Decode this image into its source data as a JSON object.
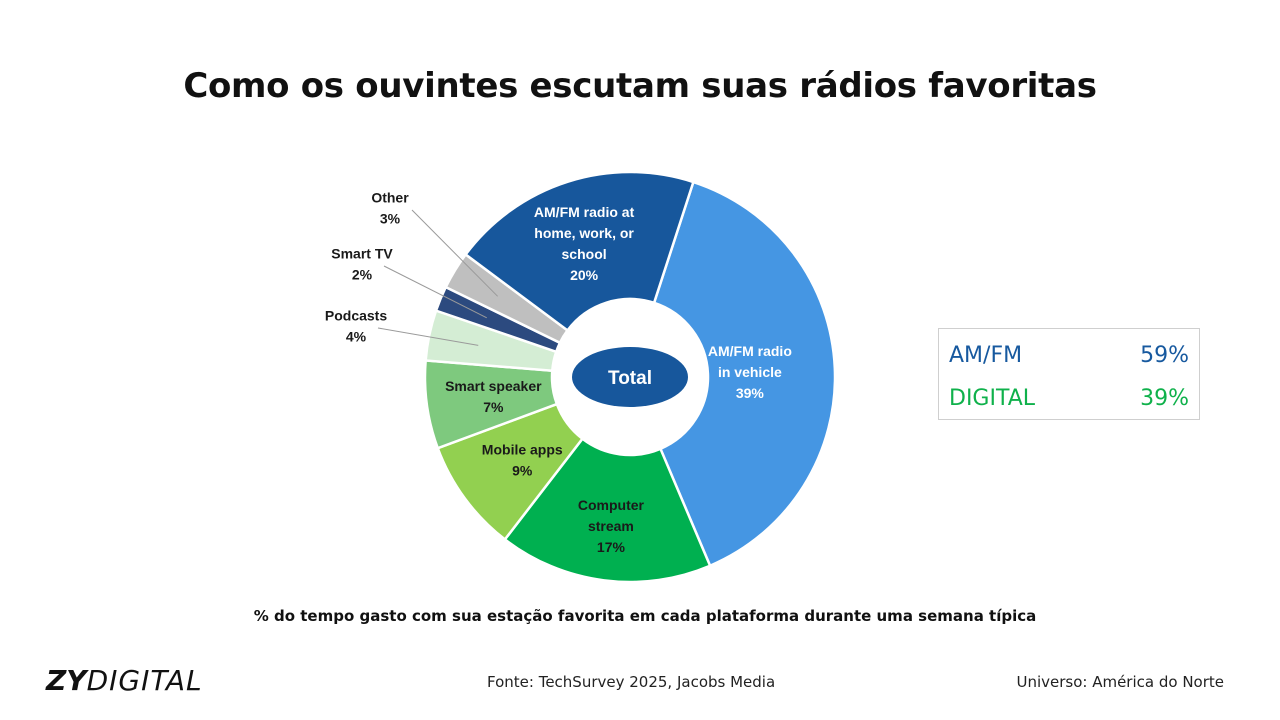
{
  "title": "Como os ouvintes escutam suas rádios favoritas",
  "chart_data": {
    "type": "pie",
    "center_label": "Total",
    "slices": [
      {
        "name": "AM/FM radio in vehicle",
        "label_lines": [
          "AM/FM radio",
          "in vehicle"
        ],
        "value_label": "39%",
        "value": 39,
        "color": "#4596e3",
        "label_color": "#ffffff"
      },
      {
        "name": "Computer stream",
        "label_lines": [
          "Computer",
          "stream"
        ],
        "value_label": "17%",
        "value": 17,
        "color": "#00b050",
        "label_color": "#1a1a1a"
      },
      {
        "name": "Mobile apps",
        "label_lines": [
          "Mobile apps"
        ],
        "value_label": "9%",
        "value": 9,
        "color": "#92d050",
        "label_color": "#1a1a1a"
      },
      {
        "name": "Smart speaker",
        "label_lines": [
          "Smart speaker"
        ],
        "value_label": "7%",
        "value": 7,
        "color": "#7ec97e",
        "label_color": "#1a1a1a"
      },
      {
        "name": "Podcasts",
        "label_lines": [
          "Podcasts"
        ],
        "value_label": "4%",
        "value": 4,
        "color": "#d4edd4",
        "label_color": "#1a1a1a"
      },
      {
        "name": "Smart TV",
        "label_lines": [
          "Smart TV"
        ],
        "value_label": "2%",
        "value": 2,
        "color": "#2c4a7f",
        "label_color": "#1a1a1a"
      },
      {
        "name": "Other",
        "label_lines": [
          "Other"
        ],
        "value_label": "3%",
        "value": 3,
        "color": "#bfbfbf",
        "label_color": "#1a1a1a"
      },
      {
        "name": "AM/FM radio at home, work, or school",
        "label_lines": [
          "AM/FM radio at",
          "home, work, or",
          "school"
        ],
        "value_label": "20%",
        "value": 20,
        "color": "#17579c",
        "label_color": "#ffffff"
      }
    ]
  },
  "summary": {
    "amfm_label": "AM/FM",
    "amfm_value": "59%",
    "amfm_color": "#17599f",
    "digital_label": "DIGITAL",
    "digital_value": "39%",
    "digital_color": "#0fb14b"
  },
  "caption": "% do tempo gasto com sua estação favorita em cada plataforma durante uma semana típica",
  "logo": {
    "strong": "ZY",
    "light": "DIGITAL"
  },
  "source": "Fonte: TechSurvey 2025, Jacobs Media",
  "universe": "Universo: América do Norte"
}
